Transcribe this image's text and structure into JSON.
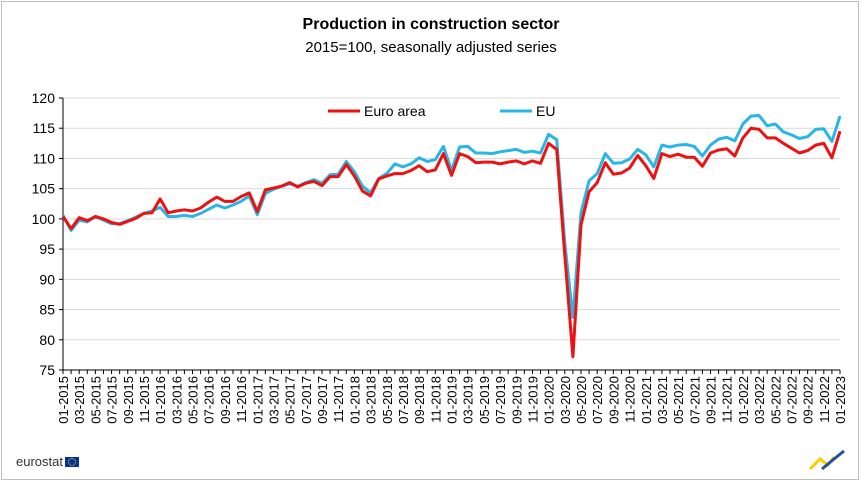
{
  "chart_title": "Production in construction sector",
  "chart_subtitle": "2015=100, seasonally adjusted series",
  "brand": "eurostat",
  "colors": {
    "euro_area": "#ee1111",
    "eu": "#29b6e6",
    "grid": "#d9d9d9",
    "axis": "#000000"
  },
  "chart_data": {
    "type": "line",
    "title": "Production in construction sector",
    "subtitle": "2015=100, seasonally adjusted series",
    "xlabel": "",
    "ylabel": "",
    "ylim": [
      75,
      120
    ],
    "yticks": [
      75,
      80,
      85,
      90,
      95,
      100,
      105,
      110,
      115,
      120
    ],
    "grid": "horizontal",
    "legend_position": "top",
    "x": [
      "01-2015",
      "02-2015",
      "03-2015",
      "04-2015",
      "05-2015",
      "06-2015",
      "07-2015",
      "08-2015",
      "09-2015",
      "10-2015",
      "11-2015",
      "12-2015",
      "01-2016",
      "02-2016",
      "03-2016",
      "04-2016",
      "05-2016",
      "06-2016",
      "07-2016",
      "08-2016",
      "09-2016",
      "10-2016",
      "11-2016",
      "12-2016",
      "01-2017",
      "02-2017",
      "03-2017",
      "04-2017",
      "05-2017",
      "06-2017",
      "07-2017",
      "08-2017",
      "09-2017",
      "10-2017",
      "11-2017",
      "12-2017",
      "01-2018",
      "02-2018",
      "03-2018",
      "04-2018",
      "05-2018",
      "06-2018",
      "07-2018",
      "08-2018",
      "09-2018",
      "10-2018",
      "11-2018",
      "12-2018",
      "01-2019",
      "02-2019",
      "03-2019",
      "04-2019",
      "05-2019",
      "06-2019",
      "07-2019",
      "08-2019",
      "09-2019",
      "10-2019",
      "11-2019",
      "12-2019",
      "01-2020",
      "02-2020",
      "03-2020",
      "04-2020",
      "05-2020",
      "06-2020",
      "07-2020",
      "08-2020",
      "09-2020",
      "10-2020",
      "11-2020",
      "12-2020",
      "01-2021",
      "02-2021",
      "03-2021",
      "04-2021",
      "05-2021",
      "06-2021",
      "07-2021",
      "08-2021",
      "09-2021",
      "10-2021",
      "11-2021",
      "12-2021",
      "01-2022",
      "02-2022",
      "03-2022",
      "04-2022",
      "05-2022",
      "06-2022",
      "07-2022",
      "08-2022",
      "09-2022",
      "10-2022",
      "11-2022",
      "12-2022",
      "01-2023"
    ],
    "x_tick_labels": [
      "01-2015",
      "03-2015",
      "05-2015",
      "07-2015",
      "09-2015",
      "11-2015",
      "01-2016",
      "03-2016",
      "05-2016",
      "07-2016",
      "09-2016",
      "11-2016",
      "01-2017",
      "03-2017",
      "05-2017",
      "07-2017",
      "09-2017",
      "11-2017",
      "01-2018",
      "03-2018",
      "05-2018",
      "07-2018",
      "09-2018",
      "11-2018",
      "01-2019",
      "03-2019",
      "05-2019",
      "07-2019",
      "09-2019",
      "11-2019",
      "01-2020",
      "03-2020",
      "05-2020",
      "07-2020",
      "09-2020",
      "11-2020",
      "01-2021",
      "03-2021",
      "05-2021",
      "07-2021",
      "09-2021",
      "11-2021",
      "01-2022",
      "03-2022",
      "05-2022",
      "07-2022",
      "09-2022",
      "11-2022",
      "01-2023"
    ],
    "series": [
      {
        "name": "Euro area",
        "color": "#ee1111",
        "values": [
          100.4,
          98.4,
          100.2,
          99.7,
          100.4,
          100.0,
          99.4,
          99.1,
          99.6,
          100.1,
          100.9,
          101.0,
          103.3,
          101.0,
          101.3,
          101.5,
          101.3,
          101.8,
          102.8,
          103.6,
          102.9,
          102.9,
          103.7,
          104.3,
          101.2,
          104.8,
          105.1,
          105.4,
          106.0,
          105.3,
          105.9,
          106.2,
          105.5,
          107.0,
          107.0,
          109.0,
          107.1,
          104.6,
          103.8,
          106.6,
          107.1,
          107.5,
          107.5,
          108.0,
          108.8,
          107.8,
          108.1,
          110.8,
          107.2,
          110.8,
          110.3,
          109.3,
          109.4,
          109.4,
          109.1,
          109.4,
          109.6,
          109.1,
          109.6,
          109.2,
          112.5,
          111.5,
          94.0,
          77.2,
          99.0,
          104.5,
          106.0,
          109.3,
          107.4,
          107.6,
          108.4,
          110.5,
          108.8,
          106.7,
          110.8,
          110.3,
          110.7,
          110.2,
          110.2,
          108.7,
          110.9,
          111.4,
          111.6,
          110.4,
          113.4,
          115.0,
          114.8,
          113.4,
          113.4,
          112.5,
          111.7,
          110.9,
          111.3,
          112.2,
          112.5,
          110.1,
          114.5
        ]
      },
      {
        "name": "EU",
        "color": "#29b6e6",
        "values": [
          100.6,
          98.1,
          99.8,
          99.5,
          100.4,
          99.8,
          99.2,
          99.2,
          99.7,
          100.3,
          100.9,
          101.3,
          101.9,
          100.4,
          100.4,
          100.6,
          100.4,
          100.9,
          101.6,
          102.3,
          101.8,
          102.3,
          102.9,
          103.8,
          100.7,
          104.2,
          104.9,
          105.4,
          105.8,
          105.4,
          106.0,
          106.5,
          105.9,
          107.3,
          107.4,
          109.5,
          107.8,
          105.4,
          104.3,
          106.7,
          107.5,
          109.1,
          108.6,
          109.1,
          110.1,
          109.5,
          109.8,
          112.0,
          108.0,
          111.9,
          112.0,
          110.9,
          110.9,
          110.8,
          111.1,
          111.3,
          111.5,
          111.0,
          111.2,
          110.9,
          114.0,
          113.1,
          96.0,
          83.7,
          101.0,
          106.3,
          107.5,
          110.8,
          109.2,
          109.3,
          109.9,
          111.5,
          110.6,
          108.6,
          112.2,
          111.9,
          112.2,
          112.3,
          112.0,
          110.4,
          112.2,
          113.2,
          113.5,
          112.9,
          115.7,
          117.0,
          117.1,
          115.4,
          115.7,
          114.4,
          113.9,
          113.3,
          113.6,
          114.8,
          114.9,
          112.8,
          117.0
        ]
      }
    ]
  }
}
